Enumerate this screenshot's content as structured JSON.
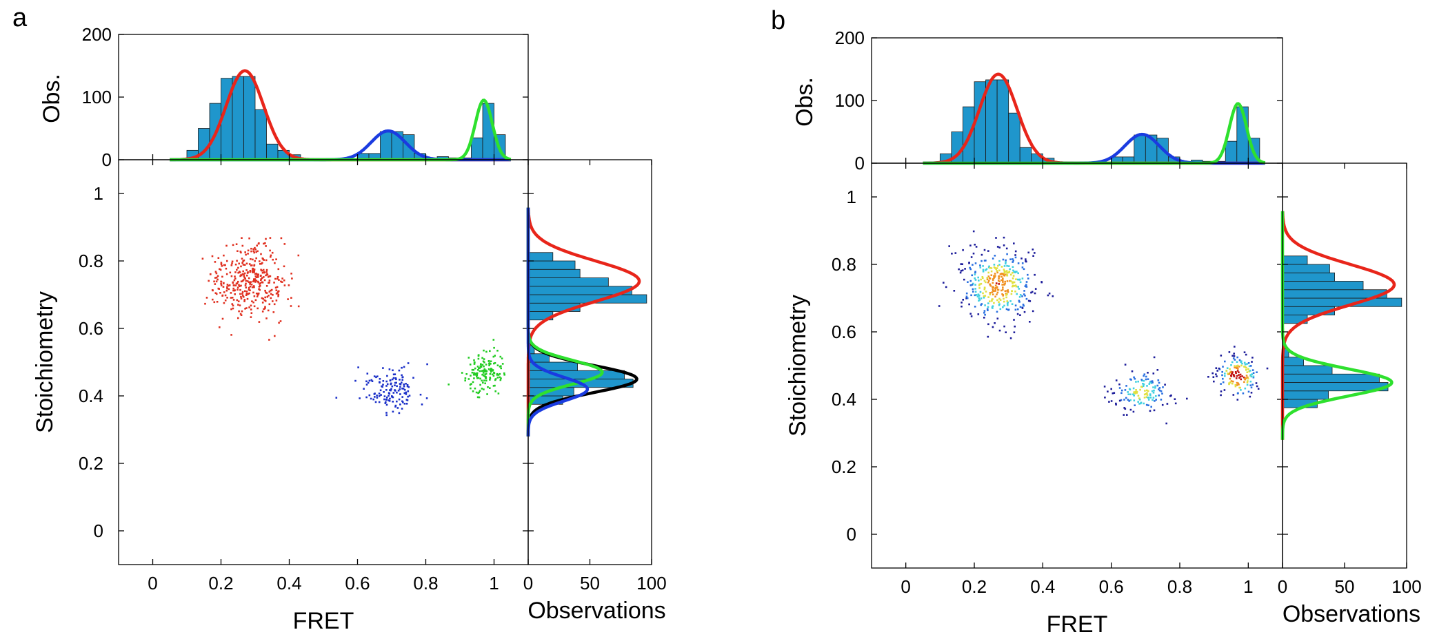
{
  "chart_data": [
    {
      "panel_label": "a",
      "type": "scatter",
      "coloring": "population",
      "xlabel": "FRET",
      "ylabel": "Stoichiometry",
      "xlim": [
        -0.1,
        1.1
      ],
      "ylim": [
        -0.1,
        1.1
      ],
      "x_ticks": [
        0,
        0.2,
        0.4,
        0.6,
        0.8,
        1
      ],
      "x_tick_labels": [
        "0",
        "0.2",
        "0.4",
        "0.6",
        "0.8",
        "1"
      ],
      "y_ticks": [
        0,
        0.2,
        0.4,
        0.6,
        0.8,
        1
      ],
      "y_tick_labels": [
        "0",
        "0.2",
        "0.4",
        "0.6",
        "0.8",
        "1"
      ],
      "populations": [
        {
          "name": "red",
          "color": "#e03020",
          "center_x": 0.28,
          "center_y": 0.74,
          "sd_x": 0.055,
          "sd_y": 0.055,
          "n": 380
        },
        {
          "name": "blue",
          "color": "#1a2fc8",
          "center_x": 0.69,
          "center_y": 0.42,
          "sd_x": 0.045,
          "sd_y": 0.035,
          "n": 140
        },
        {
          "name": "green",
          "color": "#22cc22",
          "center_x": 0.97,
          "center_y": 0.47,
          "sd_x": 0.03,
          "sd_y": 0.03,
          "n": 150
        }
      ],
      "top_histogram": {
        "ylabel": "Obs.",
        "ylim": [
          0,
          200
        ],
        "y_ticks": [
          0,
          100,
          200
        ],
        "y_tick_labels": [
          "0",
          "100",
          "200"
        ],
        "bar_color": "#1f96cc",
        "bin_width": 0.0333,
        "bin_left_edges": [
          0.1,
          0.1333,
          0.1667,
          0.2,
          0.2333,
          0.2667,
          0.3,
          0.3333,
          0.3667,
          0.4,
          0.6,
          0.6333,
          0.6667,
          0.7,
          0.7333,
          0.7667,
          0.8333,
          0.8667,
          0.9,
          0.9333,
          0.9667,
          1.0
        ],
        "counts": [
          15,
          50,
          90,
          130,
          133,
          133,
          80,
          25,
          15,
          8,
          10,
          10,
          45,
          45,
          40,
          10,
          5,
          3,
          3,
          35,
          90,
          40
        ],
        "fits": [
          {
            "name": "red fit",
            "color": "#e8251a",
            "amplitude": 142,
            "mean": 0.27,
            "sd": 0.055
          },
          {
            "name": "blue fit",
            "color": "#1a3be0",
            "amplitude": 46,
            "mean": 0.69,
            "sd": 0.05
          },
          {
            "name": "green fit",
            "color": "#2ee02e",
            "amplitude": 95,
            "mean": 0.97,
            "sd": 0.025
          }
        ]
      },
      "right_histogram": {
        "xlabel": "Observations",
        "xlim": [
          0,
          100
        ],
        "x_ticks": [
          0,
          50,
          100
        ],
        "x_tick_labels": [
          "0",
          "50",
          "100"
        ],
        "bar_color": "#1f96cc",
        "bin_width": 0.025,
        "bin_lower_edges": [
          0.375,
          0.4,
          0.425,
          0.45,
          0.475,
          0.5,
          0.525,
          0.625,
          0.65,
          0.675,
          0.7,
          0.725,
          0.75,
          0.775,
          0.8
        ],
        "counts": [
          28,
          37,
          85,
          78,
          40,
          17,
          5,
          20,
          42,
          96,
          84,
          65,
          42,
          38,
          20
        ],
        "fits": [
          {
            "name": "red fit",
            "color": "#e8251a",
            "amplitude": 90,
            "mean": 0.74,
            "sd": 0.06
          },
          {
            "name": "total fit",
            "color": "#000000",
            "amplitude": 88,
            "mean": 0.45,
            "sd": 0.04
          },
          {
            "name": "green fit",
            "color": "#2ee02e",
            "amplitude": 60,
            "mean": 0.47,
            "sd": 0.035
          },
          {
            "name": "blue fit",
            "color": "#1a3be0",
            "amplitude": 48,
            "mean": 0.42,
            "sd": 0.035
          }
        ]
      }
    },
    {
      "panel_label": "b",
      "type": "scatter",
      "coloring": "density",
      "xlabel": "FRET",
      "ylabel": "Stoichiometry",
      "xlim": [
        -0.1,
        1.1
      ],
      "ylim": [
        -0.1,
        1.1
      ],
      "x_ticks": [
        0,
        0.2,
        0.4,
        0.6,
        0.8,
        1
      ],
      "x_tick_labels": [
        "0",
        "0.2",
        "0.4",
        "0.6",
        "0.8",
        "1"
      ],
      "y_ticks": [
        0,
        0.2,
        0.4,
        0.6,
        0.8,
        1
      ],
      "y_tick_labels": [
        "0",
        "0.2",
        "0.4",
        "0.6",
        "0.8",
        "1"
      ],
      "populations": [
        {
          "name": "low-FRET",
          "center_x": 0.27,
          "center_y": 0.74,
          "sd_x": 0.055,
          "sd_y": 0.055,
          "n": 380
        },
        {
          "name": "mid-FRET",
          "center_x": 0.69,
          "center_y": 0.42,
          "sd_x": 0.045,
          "sd_y": 0.035,
          "n": 140
        },
        {
          "name": "high-FRET",
          "center_x": 0.97,
          "center_y": 0.47,
          "sd_x": 0.03,
          "sd_y": 0.03,
          "n": 150
        }
      ],
      "density_colors": [
        "#1c1c9a",
        "#2a70e0",
        "#40d0e0",
        "#e0e040",
        "#f09020",
        "#c01010"
      ],
      "top_histogram": {
        "ylabel": "Obs.",
        "ylim": [
          0,
          200
        ],
        "y_ticks": [
          0,
          100,
          200
        ],
        "y_tick_labels": [
          "0",
          "100",
          "200"
        ],
        "bar_color": "#1f96cc",
        "bin_width": 0.0333,
        "bin_left_edges": [
          0.1,
          0.1333,
          0.1667,
          0.2,
          0.2333,
          0.2667,
          0.3,
          0.3333,
          0.3667,
          0.4,
          0.6,
          0.6333,
          0.6667,
          0.7,
          0.7333,
          0.7667,
          0.8333,
          0.8667,
          0.9,
          0.9333,
          0.9667,
          1.0
        ],
        "counts": [
          15,
          50,
          90,
          130,
          133,
          133,
          80,
          25,
          15,
          8,
          10,
          10,
          45,
          45,
          40,
          10,
          5,
          3,
          3,
          35,
          90,
          40
        ],
        "fits": [
          {
            "name": "red fit",
            "color": "#e8251a",
            "amplitude": 142,
            "mean": 0.27,
            "sd": 0.055
          },
          {
            "name": "blue fit",
            "color": "#1a3be0",
            "amplitude": 46,
            "mean": 0.69,
            "sd": 0.05
          },
          {
            "name": "green fit",
            "color": "#2ee02e",
            "amplitude": 95,
            "mean": 0.97,
            "sd": 0.025
          }
        ]
      },
      "right_histogram": {
        "xlabel": "Observations",
        "xlim": [
          0,
          100
        ],
        "x_ticks": [
          0,
          50,
          100
        ],
        "x_tick_labels": [
          "0",
          "50",
          "100"
        ],
        "bar_color": "#1f96cc",
        "bin_width": 0.025,
        "bin_lower_edges": [
          0.375,
          0.4,
          0.425,
          0.45,
          0.475,
          0.5,
          0.525,
          0.625,
          0.65,
          0.675,
          0.7,
          0.725,
          0.75,
          0.775,
          0.8
        ],
        "counts": [
          28,
          37,
          85,
          78,
          40,
          17,
          5,
          20,
          42,
          96,
          84,
          65,
          42,
          38,
          20
        ],
        "fits": [
          {
            "name": "red fit",
            "color": "#e8251a",
            "amplitude": 90,
            "mean": 0.74,
            "sd": 0.06
          },
          {
            "name": "green fit",
            "color": "#2ee02e",
            "amplitude": 88,
            "mean": 0.45,
            "sd": 0.04
          }
        ]
      }
    }
  ]
}
